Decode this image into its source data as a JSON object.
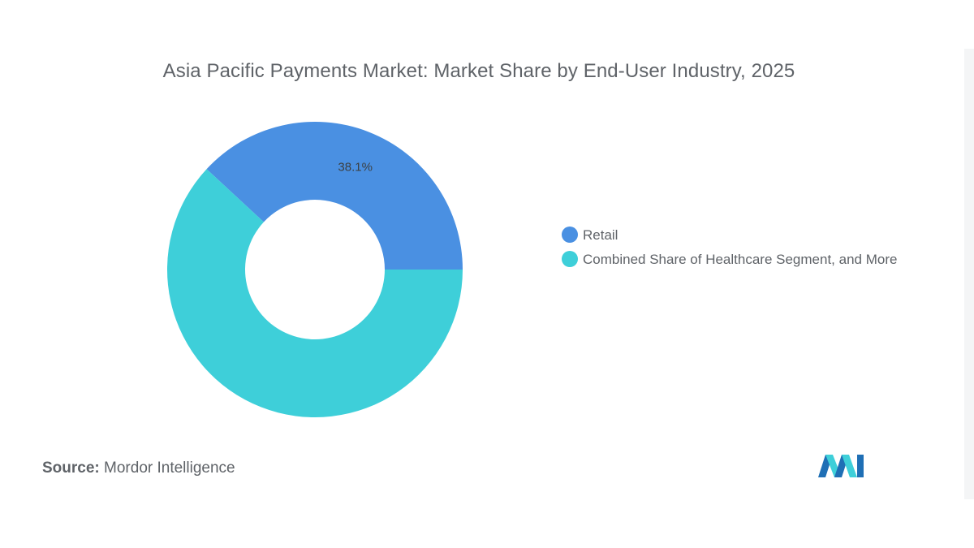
{
  "chart_data": {
    "type": "pie",
    "donut": true,
    "title": "Asia Pacific Payments Market: Market Share by End-User Industry, 2025",
    "slices": [
      {
        "label": "Retail",
        "value": 38.1,
        "data_label": "38.1%",
        "color": "#4a90e2"
      },
      {
        "label": "Combined Share of Healthcare Segment, and More",
        "value": 61.9,
        "data_label": "",
        "color": "#3ecfd9"
      }
    ],
    "legend_position": "right"
  },
  "source": {
    "key": "Source:",
    "value": "Mordor Intelligence"
  },
  "logo": {
    "icon": "mordor-intelligence-logo",
    "colors": [
      "#1f6fb5",
      "#3ecfd9"
    ]
  }
}
